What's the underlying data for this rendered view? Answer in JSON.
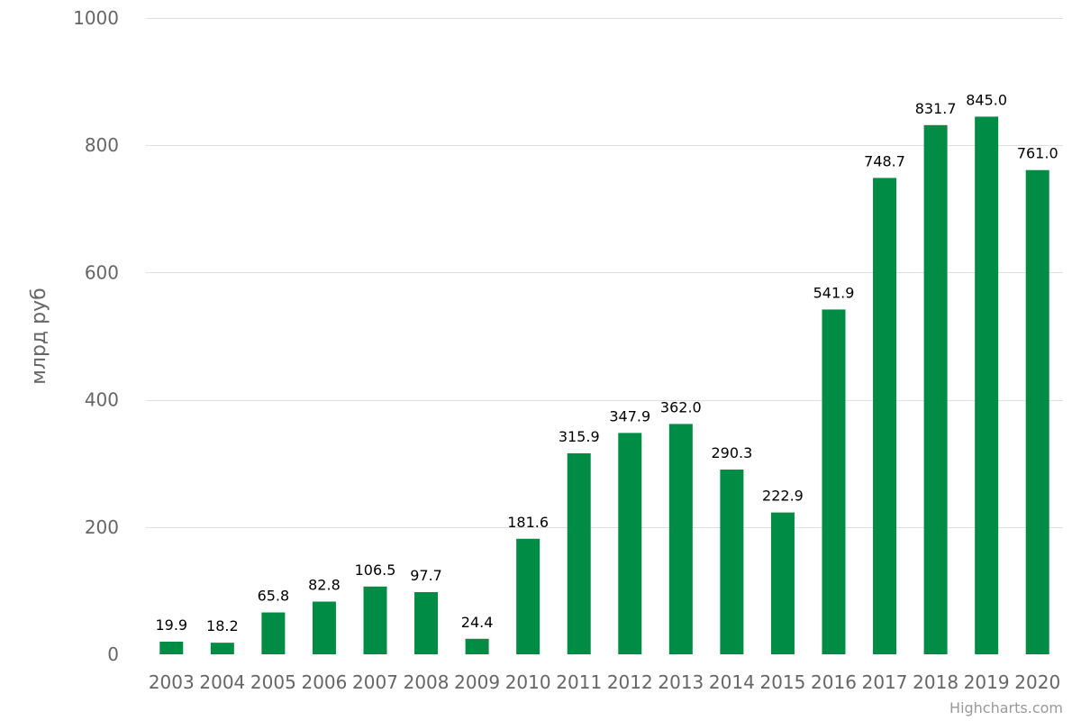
{
  "chart_data": {
    "type": "bar",
    "categories": [
      "2003",
      "2004",
      "2005",
      "2006",
      "2007",
      "2008",
      "2009",
      "2010",
      "2011",
      "2012",
      "2013",
      "2014",
      "2015",
      "2016",
      "2017",
      "2018",
      "2019",
      "2020"
    ],
    "values": [
      19.9,
      18.2,
      65.8,
      82.8,
      106.5,
      97.7,
      24.4,
      181.6,
      315.9,
      347.9,
      362.0,
      290.3,
      222.9,
      541.9,
      748.7,
      831.7,
      845.0,
      761.0
    ],
    "data_labels": [
      "19.9",
      "18.2",
      "65.8",
      "82.8",
      "106.5",
      "97.7",
      "24.4",
      "181.6",
      "315.9",
      "347.9",
      "362.0",
      "290.3",
      "222.9",
      "541.9",
      "748.7",
      "831.7",
      "845.0",
      "761.0"
    ],
    "ylabel": "млрд руб",
    "xlabel": "",
    "ylim": [
      0,
      1000
    ],
    "yticks": [
      0,
      200,
      400,
      600,
      800,
      1000
    ],
    "grid": true,
    "bar_color": "#008c44"
  },
  "credits": "Highcharts.com"
}
